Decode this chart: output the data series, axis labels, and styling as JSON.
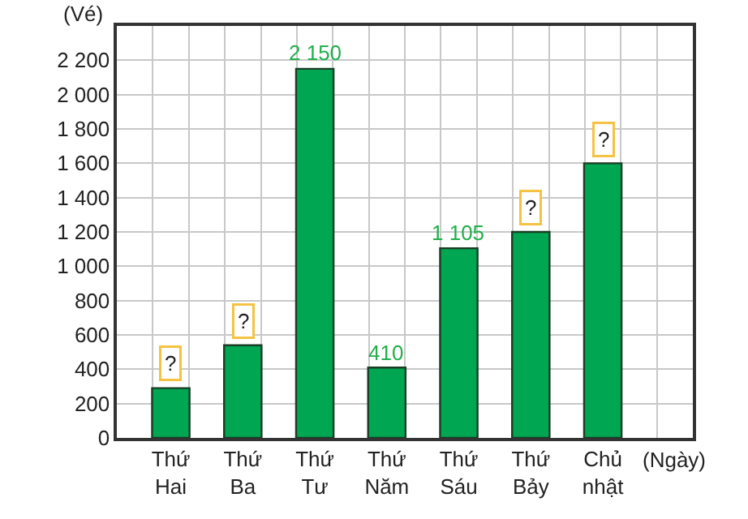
{
  "chart_data": {
    "type": "bar",
    "xlabel": "(Ngày)",
    "ylabel": "(Vé)",
    "categories": [
      "Thứ Hai",
      "Thứ Ba",
      "Thứ Tư",
      "Thứ Năm",
      "Thứ Sáu",
      "Thứ Bảy",
      "Chủ nhật"
    ],
    "values": [
      290,
      540,
      2150,
      410,
      1105,
      1200,
      1600
    ],
    "value_labels": [
      "?",
      "?",
      "2 150",
      "410",
      "1 105",
      "?",
      "?"
    ],
    "color": "#00a651",
    "ylim": [
      0,
      2400
    ],
    "yticks": [
      0,
      200,
      400,
      600,
      800,
      {
        "value": 1000,
        "label": "1 000"
      },
      {
        "value": 1200,
        "label": "1 200"
      },
      {
        "value": 1400,
        "label": "1 400"
      },
      {
        "value": 1600,
        "label": "1 600"
      },
      {
        "value": 1800,
        "label": "1 800"
      },
      {
        "value": 2000,
        "label": "2 000"
      },
      {
        "value": 2200,
        "label": "2 200"
      }
    ],
    "grid": true,
    "legend": false
  }
}
